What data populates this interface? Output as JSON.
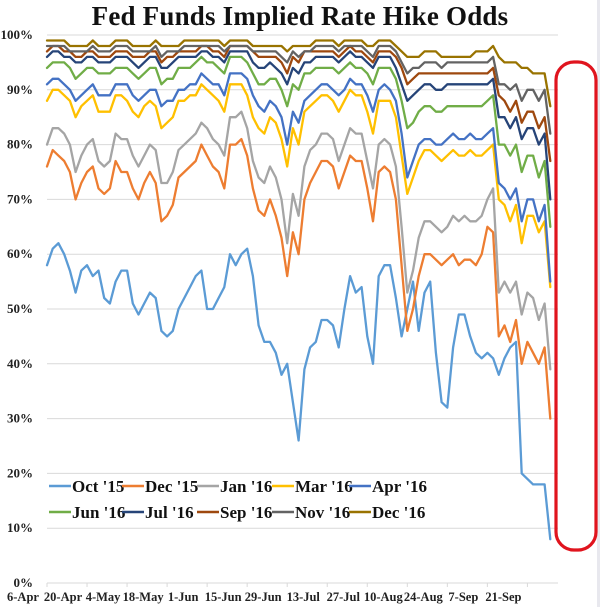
{
  "chart_data": {
    "type": "line",
    "title": "Fed Funds Implied Rate Hike Odds",
    "xlabel": "",
    "ylabel": "",
    "ylim": [
      0,
      100
    ],
    "y_ticks": [
      "0%",
      "10%",
      "20%",
      "30%",
      "40%",
      "50%",
      "60%",
      "70%",
      "80%",
      "90%",
      "100%"
    ],
    "x_ticks": [
      "6-Apr",
      "20-Apr",
      "4-May",
      "18-May",
      "1-Jun",
      "15-Jun",
      "29-Jun",
      "13-Jul",
      "27-Jul",
      "10-Aug",
      "24-Aug",
      "7-Sep",
      "21-Sep"
    ],
    "x_range_days": [
      0,
      178
    ],
    "grid": true,
    "legend_position": "bottom-inside",
    "annotation": "red rounded rectangle highlighting most recent days",
    "x_days": [
      0,
      2,
      4,
      6,
      8,
      10,
      12,
      14,
      16,
      18,
      20,
      22,
      24,
      26,
      28,
      30,
      32,
      34,
      36,
      38,
      40,
      42,
      44,
      46,
      48,
      50,
      52,
      54,
      56,
      58,
      60,
      62,
      64,
      66,
      68,
      70,
      72,
      74,
      76,
      78,
      80,
      82,
      84,
      86,
      88,
      90,
      92,
      94,
      96,
      98,
      100,
      102,
      104,
      106,
      108,
      110,
      112,
      114,
      116,
      118,
      120,
      122,
      124,
      126,
      128,
      130,
      132,
      134,
      136,
      138,
      140,
      142,
      144,
      146,
      148,
      150,
      152,
      154,
      156,
      158,
      160,
      162,
      164,
      166,
      168,
      170,
      172,
      174,
      176
    ],
    "series": [
      {
        "name": "Oct '15",
        "color": "#5b9bd5",
        "values": [
          58,
          61,
          62,
          60,
          57,
          53,
          57,
          58,
          56,
          57,
          52,
          51,
          55,
          57,
          57,
          51,
          49,
          51,
          53,
          52,
          46,
          45,
          46,
          50,
          52,
          54,
          56,
          57,
          50,
          50,
          52,
          54,
          60,
          58,
          60,
          61,
          56,
          47,
          44,
          44,
          42,
          38,
          40,
          33,
          26,
          39,
          43,
          44,
          48,
          48,
          47,
          43,
          50,
          56,
          53,
          54,
          45,
          40,
          56,
          58,
          58,
          52,
          45,
          50,
          55,
          46,
          53,
          55,
          42,
          33,
          32,
          43,
          49,
          49,
          45,
          42,
          41,
          42,
          41,
          38,
          41,
          43,
          44,
          20,
          19,
          18,
          18,
          18,
          8
        ]
      },
      {
        "name": "Dec '15",
        "color": "#ed7d31",
        "values": [
          76,
          79,
          78,
          77,
          75,
          70,
          73,
          75,
          76,
          72,
          71,
          72,
          77,
          75,
          75,
          72,
          70,
          73,
          75,
          73,
          66,
          67,
          69,
          74,
          75,
          76,
          77,
          80,
          78,
          76,
          75,
          72,
          80,
          80,
          81,
          78,
          72,
          68,
          67,
          70,
          67,
          63,
          56,
          64,
          60,
          70,
          73,
          75,
          77,
          77,
          76,
          72,
          75,
          78,
          77,
          77,
          72,
          66,
          75,
          76,
          75,
          70,
          58,
          46,
          50,
          56,
          60,
          60,
          59,
          58,
          59,
          60,
          58,
          59,
          59,
          58,
          60,
          65,
          64,
          45,
          47,
          44,
          48,
          40,
          44,
          42,
          40,
          43,
          30
        ]
      },
      {
        "name": "Jan '16",
        "color": "#a5a5a5",
        "values": [
          80,
          83,
          83,
          82,
          80,
          75,
          78,
          80,
          81,
          77,
          76,
          77,
          82,
          81,
          81,
          78,
          76,
          78,
          80,
          79,
          73,
          73,
          75,
          79,
          80,
          81,
          82,
          84,
          83,
          81,
          80,
          78,
          85,
          85,
          86,
          83,
          77,
          74,
          73,
          76,
          74,
          70,
          62,
          71,
          67,
          76,
          79,
          80,
          82,
          82,
          81,
          77,
          80,
          83,
          82,
          82,
          77,
          72,
          80,
          81,
          80,
          76,
          65,
          53,
          57,
          63,
          66,
          66,
          65,
          64,
          65,
          67,
          66,
          67,
          66,
          66,
          67,
          70,
          72,
          53,
          55,
          53,
          55,
          49,
          53,
          52,
          48,
          51,
          39
        ]
      },
      {
        "name": "Mar '16",
        "color": "#ffc000",
        "values": [
          88,
          90,
          90,
          89,
          88,
          85,
          87,
          88,
          89,
          86,
          86,
          86,
          89,
          89,
          88,
          86,
          85,
          87,
          88,
          87,
          83,
          84,
          85,
          88,
          88,
          89,
          89,
          91,
          90,
          89,
          88,
          86,
          91,
          91,
          91,
          89,
          85,
          83,
          82,
          85,
          84,
          81,
          76,
          83,
          80,
          86,
          87,
          88,
          89,
          89,
          88,
          86,
          88,
          90,
          89,
          89,
          86,
          82,
          88,
          88,
          88,
          85,
          78,
          71,
          74,
          77,
          79,
          79,
          78,
          77,
          78,
          79,
          78,
          78,
          79,
          78,
          78,
          79,
          80,
          70,
          69,
          66,
          69,
          62,
          67,
          67,
          64,
          66,
          54
        ]
      },
      {
        "name": "Apr '16",
        "color": "#4472c4",
        "values": [
          91,
          92,
          92,
          91,
          90,
          88,
          89,
          90,
          91,
          89,
          89,
          89,
          91,
          91,
          91,
          89,
          88,
          89,
          90,
          90,
          87,
          88,
          88,
          90,
          90,
          91,
          91,
          93,
          92,
          91,
          91,
          89,
          93,
          93,
          93,
          92,
          89,
          87,
          86,
          88,
          87,
          85,
          80,
          86,
          84,
          88,
          89,
          90,
          91,
          91,
          90,
          89,
          90,
          92,
          91,
          91,
          89,
          86,
          90,
          91,
          90,
          88,
          82,
          74,
          77,
          80,
          81,
          81,
          80,
          80,
          81,
          82,
          81,
          81,
          82,
          81,
          81,
          82,
          83,
          73,
          72,
          70,
          72,
          66,
          70,
          70,
          66,
          69,
          55
        ]
      },
      {
        "name": "Jun '16",
        "color": "#70ad47",
        "values": [
          94,
          95,
          95,
          95,
          94,
          92,
          93,
          94,
          94,
          93,
          93,
          93,
          94,
          94,
          94,
          93,
          92,
          93,
          94,
          94,
          91,
          92,
          92,
          94,
          94,
          94,
          95,
          96,
          95,
          95,
          94,
          93,
          96,
          96,
          96,
          95,
          93,
          91,
          91,
          92,
          92,
          90,
          87,
          91,
          90,
          93,
          93,
          94,
          94,
          94,
          94,
          93,
          94,
          95,
          94,
          94,
          93,
          91,
          94,
          94,
          94,
          92,
          88,
          83,
          84,
          86,
          87,
          87,
          86,
          86,
          87,
          87,
          87,
          87,
          87,
          87,
          87,
          88,
          89,
          80,
          80,
          78,
          80,
          75,
          78,
          78,
          74,
          77,
          65
        ]
      },
      {
        "name": "Jul '16",
        "color": "#264478",
        "values": [
          96,
          97,
          97,
          96,
          96,
          95,
          95,
          96,
          96,
          95,
          95,
          95,
          96,
          96,
          96,
          95,
          94,
          95,
          96,
          96,
          94,
          94,
          95,
          96,
          96,
          96,
          96,
          97,
          97,
          96,
          96,
          95,
          97,
          97,
          97,
          97,
          95,
          94,
          94,
          95,
          94,
          93,
          91,
          94,
          93,
          95,
          95,
          96,
          96,
          96,
          96,
          95,
          96,
          97,
          96,
          96,
          95,
          94,
          96,
          96,
          96,
          94,
          91,
          88,
          89,
          90,
          91,
          91,
          90,
          90,
          91,
          91,
          91,
          91,
          91,
          91,
          91,
          91,
          92,
          85,
          85,
          83,
          85,
          81,
          83,
          83,
          80,
          82,
          70
        ]
      },
      {
        "name": "Sep '16",
        "color": "#9e480e",
        "values": [
          97,
          98,
          98,
          97,
          97,
          96,
          96,
          97,
          97,
          96,
          96,
          96,
          97,
          97,
          97,
          96,
          96,
          96,
          97,
          97,
          95,
          96,
          96,
          97,
          97,
          97,
          97,
          98,
          98,
          97,
          97,
          96,
          98,
          98,
          98,
          98,
          97,
          96,
          96,
          96,
          96,
          95,
          93,
          96,
          95,
          97,
          97,
          97,
          97,
          97,
          97,
          96,
          97,
          98,
          97,
          97,
          96,
          95,
          97,
          97,
          97,
          96,
          94,
          91,
          92,
          93,
          93,
          93,
          93,
          93,
          93,
          93,
          93,
          93,
          93,
          93,
          93,
          93,
          94,
          89,
          88,
          86,
          88,
          84,
          86,
          86,
          83,
          85,
          77
        ]
      },
      {
        "name": "Nov '16",
        "color": "#636363",
        "values": [
          98,
          98,
          98,
          98,
          97,
          97,
          97,
          97,
          98,
          97,
          97,
          97,
          98,
          98,
          98,
          97,
          97,
          97,
          97,
          98,
          96,
          97,
          97,
          97,
          98,
          98,
          98,
          98,
          98,
          98,
          98,
          97,
          98,
          98,
          98,
          98,
          97,
          97,
          97,
          97,
          97,
          96,
          95,
          97,
          96,
          97,
          97,
          98,
          98,
          98,
          98,
          97,
          98,
          98,
          98,
          98,
          97,
          96,
          98,
          98,
          98,
          97,
          95,
          93,
          94,
          94,
          95,
          95,
          95,
          94,
          95,
          95,
          95,
          95,
          95,
          95,
          95,
          95,
          96,
          91,
          91,
          90,
          91,
          88,
          90,
          90,
          88,
          90,
          82
        ]
      },
      {
        "name": "Dec '16",
        "color": "#997300",
        "values": [
          99,
          99,
          99,
          99,
          98,
          98,
          98,
          98,
          99,
          98,
          98,
          98,
          99,
          99,
          99,
          98,
          98,
          98,
          98,
          99,
          98,
          98,
          98,
          98,
          99,
          99,
          99,
          99,
          99,
          99,
          99,
          98,
          99,
          99,
          99,
          99,
          98,
          98,
          98,
          98,
          98,
          98,
          97,
          98,
          98,
          98,
          98,
          99,
          99,
          99,
          99,
          98,
          99,
          99,
          99,
          99,
          98,
          98,
          99,
          99,
          99,
          98,
          97,
          96,
          96,
          96,
          97,
          97,
          97,
          96,
          96,
          96,
          96,
          96,
          96,
          97,
          97,
          97,
          98,
          96,
          95,
          95,
          95,
          94,
          94,
          93,
          93,
          93,
          87
        ]
      }
    ]
  }
}
